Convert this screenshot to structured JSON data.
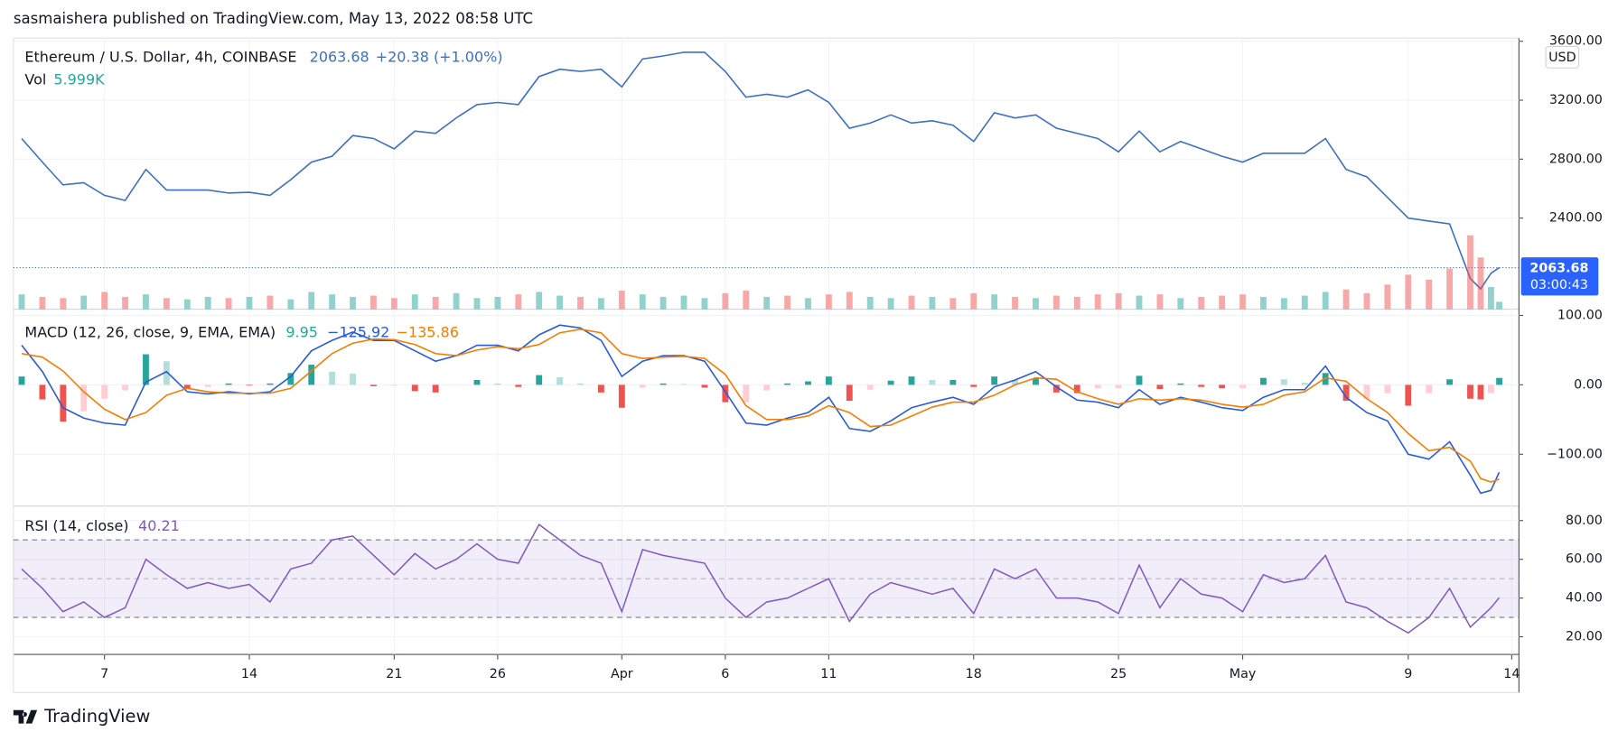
{
  "header": "sasmaishera published on TradingView.com, May 13, 2022 08:58 UTC",
  "footer": "TradingView",
  "chart_data": [
    {
      "type": "line",
      "title": "Ethereum / U.S. Dollar, 4h, COINBASE",
      "change": "+20.38 (+1.00%)",
      "countdown": "03:00:43",
      "unit": "USD",
      "color": "#3d6fc2",
      "x": [
        2,
        3,
        4,
        5,
        6,
        7,
        8,
        9,
        10,
        11,
        12,
        13,
        14,
        15,
        16,
        17,
        18,
        19,
        20,
        21,
        22,
        23,
        24,
        25,
        26,
        27,
        28,
        29,
        30,
        31,
        32,
        33,
        34,
        35,
        36,
        37,
        38,
        39,
        40,
        41,
        42,
        43,
        44,
        45,
        46,
        47,
        48,
        49,
        50,
        51,
        52,
        53,
        54,
        55,
        56,
        57,
        58,
        59,
        60,
        61,
        62,
        63,
        64,
        65,
        66,
        67,
        68,
        69,
        70,
        71,
        72,
        72.5,
        73,
        73.4
      ],
      "xlim": [
        1.6,
        74.35
      ],
      "xticks": [
        {
          "value": 6,
          "label": "7"
        },
        {
          "value": 13,
          "label": "14"
        },
        {
          "value": 20,
          "label": "21"
        },
        {
          "value": 25,
          "label": "26"
        },
        {
          "value": 31,
          "label": "Apr"
        },
        {
          "value": 36,
          "label": "6"
        },
        {
          "value": 41,
          "label": "11"
        },
        {
          "value": 48,
          "label": "18"
        },
        {
          "value": 55,
          "label": "25"
        },
        {
          "value": 61,
          "label": "May"
        },
        {
          "value": 69,
          "label": "9"
        },
        {
          "value": 74,
          "label": "14"
        }
      ],
      "values": [
        2940,
        2780,
        2625,
        2640,
        2555,
        2520,
        2730,
        2590,
        2590,
        2590,
        2570,
        2575,
        2555,
        2660,
        2780,
        2820,
        2960,
        2940,
        2870,
        2990,
        2975,
        3080,
        3170,
        3185,
        3170,
        3360,
        3410,
        3395,
        3410,
        3290,
        3480,
        3500,
        3525,
        3525,
        3395,
        3220,
        3240,
        3220,
        3270,
        3185,
        3010,
        3045,
        3100,
        3045,
        3060,
        3030,
        2920,
        3115,
        3080,
        3100,
        3010,
        2975,
        2940,
        2850,
        2990,
        2850,
        2920,
        2870,
        2820,
        2780,
        2840,
        2840,
        2840,
        2940,
        2730,
        2680,
        2540,
        2400,
        2380,
        2360,
        1990,
        1920,
        2025,
        2063.68
      ],
      "ylim": [
        1782,
        3621
      ],
      "yticks": [
        {
          "value": 2400,
          "label": "2400.00"
        },
        {
          "value": 2800,
          "label": "2800.00"
        },
        {
          "value": 3200,
          "label": "3200.00"
        },
        {
          "value": 3600,
          "label": "3600.00"
        }
      ],
      "grid": true
    },
    {
      "type": "volume",
      "title": "Vol",
      "last_label": "5.999K",
      "up_color": "#26a69a",
      "down_color": "#ef5350",
      "values": [
        12,
        10,
        9,
        11,
        14,
        10,
        12,
        9,
        8,
        10,
        9,
        10,
        11,
        8,
        14,
        12,
        10,
        11,
        9,
        12,
        10,
        13,
        9,
        10,
        12,
        14,
        11,
        10,
        9,
        15,
        12,
        10,
        11,
        9,
        13,
        15,
        10,
        11,
        9,
        12,
        14,
        10,
        9,
        11,
        10,
        9,
        13,
        12,
        10,
        9,
        11,
        10,
        12,
        13,
        11,
        12,
        9,
        10,
        11,
        12,
        10,
        9,
        11,
        14,
        16,
        13,
        20,
        28,
        24,
        33,
        60,
        42,
        18,
        5.999
      ],
      "ylim": [
        0,
        220
      ]
    },
    {
      "type": "macd",
      "title": "MACD (12, 26, close, 9, EMA, EMA)",
      "series": [
        {
          "kind": "histogram",
          "last_label": "9.95",
          "label_color": "#26a69a",
          "colors": [
            "#26a69a",
            "#b2dfdb",
            "#ffcdd2",
            "#ef5350"
          ],
          "values": [
            12,
            -21,
            -53,
            -38,
            -20,
            -8,
            44,
            34,
            -5,
            -3,
            2,
            -1,
            2,
            17,
            29,
            19,
            16,
            -2,
            -1,
            -9,
            -11,
            0,
            7,
            2,
            -3,
            14,
            11,
            2,
            -11,
            -33,
            -4,
            2,
            1,
            -4,
            -25,
            -25,
            -8,
            2,
            5,
            12,
            -23,
            -7,
            6,
            12,
            7,
            7,
            -3,
            12,
            7,
            9,
            -11,
            -12,
            -5,
            -5,
            13,
            -6,
            2,
            -3,
            -5,
            -5,
            10,
            8,
            3,
            17,
            -23,
            -20,
            -12,
            -30,
            -12,
            8,
            -20,
            -21,
            -12,
            9.95
          ]
        },
        {
          "kind": "line",
          "last_label": "−125.92",
          "color": "#2a5bd7",
          "values": [
            57,
            19,
            -33,
            -48,
            -55,
            -58,
            4,
            19,
            -10,
            -13,
            -10,
            -13,
            -10,
            12,
            49,
            64,
            76,
            64,
            64,
            49,
            34,
            42,
            57,
            57,
            49,
            72,
            86,
            82,
            64,
            12,
            34,
            42,
            42,
            34,
            -10,
            -55,
            -58,
            -48,
            -40,
            -18,
            -63,
            -67,
            -52,
            -33,
            -25,
            -18,
            -28,
            -3,
            7,
            19,
            -3,
            -22,
            -25,
            -33,
            -7,
            -28,
            -18,
            -25,
            -33,
            -37,
            -18,
            -7,
            -7,
            27,
            -18,
            -40,
            -52,
            -100,
            -107,
            -82,
            -130,
            -156,
            -152,
            -125.92
          ]
        },
        {
          "kind": "line",
          "last_label": "−135.86",
          "color": "#f57c00",
          "values": [
            45,
            40,
            20,
            -10,
            -35,
            -50,
            -40,
            -15,
            -5,
            -10,
            -12,
            -12,
            -12,
            -5,
            20,
            45,
            60,
            66,
            65,
            58,
            45,
            42,
            50,
            55,
            52,
            58,
            75,
            80,
            75,
            45,
            38,
            40,
            41,
            38,
            15,
            -30,
            -50,
            -50,
            -45,
            -30,
            -40,
            -60,
            -58,
            -45,
            -32,
            -25,
            -25,
            -15,
            0,
            10,
            8,
            -10,
            -20,
            -28,
            -20,
            -22,
            -20,
            -22,
            -28,
            -32,
            -28,
            -15,
            -10,
            10,
            5,
            -20,
            -40,
            -70,
            -95,
            -90,
            -110,
            -135,
            -140,
            -135.86
          ]
        }
      ],
      "ylim": [
        -174.6,
        109
      ],
      "yticks": [
        {
          "value": -100,
          "label": "−100.00"
        },
        {
          "value": 0,
          "label": "0.00"
        },
        {
          "value": 100,
          "label": "100.00"
        }
      ],
      "grid": true
    },
    {
      "type": "rsi",
      "title": "RSI (14, close)",
      "color": "#7e57c2",
      "values": [
        55,
        45,
        33,
        38,
        30,
        35,
        60,
        52,
        45,
        48,
        45,
        47,
        38,
        55,
        58,
        70,
        72,
        62,
        52,
        63,
        55,
        60,
        68,
        60,
        58,
        78,
        70,
        62,
        58,
        33,
        65,
        62,
        60,
        58,
        40,
        30,
        38,
        40,
        45,
        50,
        28,
        42,
        48,
        45,
        42,
        45,
        32,
        55,
        50,
        55,
        40,
        40,
        38,
        32,
        57,
        35,
        50,
        42,
        40,
        33,
        52,
        48,
        50,
        62,
        38,
        35,
        28,
        22,
        30,
        45,
        25,
        30,
        35,
        40.21
      ],
      "bands": [
        30,
        70
      ],
      "midline": 50,
      "ylim": [
        10.9,
        87.5
      ],
      "yticks": [
        {
          "value": 20,
          "label": "20.00"
        },
        {
          "value": 40,
          "label": "40.00"
        },
        {
          "value": 60,
          "label": "60.00"
        },
        {
          "value": 80,
          "label": "80.00"
        }
      ],
      "grid": true
    }
  ]
}
